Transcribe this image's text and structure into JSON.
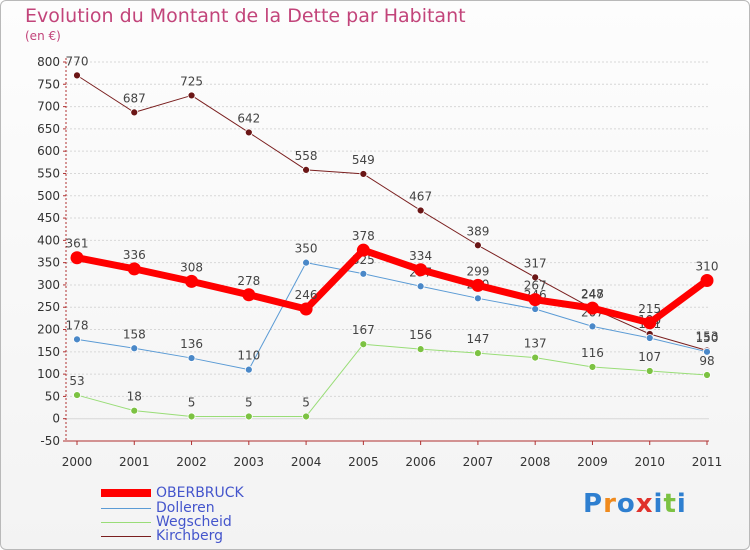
{
  "header": {
    "title": "Evolution du Montant de la Dette par Habitant",
    "unit": "(en €)"
  },
  "brand": {
    "text": "Proxiti",
    "letter_colors": [
      "#2e7fd0",
      "#f08a1c",
      "#2e7fd0",
      "#e0322c",
      "#2e7fd0",
      "#7cc242",
      "#2e7fd0"
    ]
  },
  "colors": {
    "title": "#c2447a",
    "legend_text": "#4455cc",
    "axis": "#b03030",
    "grid": "#d7d7d7"
  },
  "chart_data": {
    "type": "line",
    "title": "Evolution du Montant de la Dette par Habitant",
    "subtitle": "(en €)",
    "xlabel": "",
    "ylabel": "",
    "x": [
      "2000",
      "2001",
      "2002",
      "2003",
      "2004",
      "2005",
      "2006",
      "2007",
      "2008",
      "2009",
      "2010",
      "2011"
    ],
    "ylim": [
      -50,
      800
    ],
    "yticks": [
      -50,
      0,
      50,
      100,
      150,
      200,
      250,
      300,
      350,
      400,
      450,
      500,
      550,
      600,
      650,
      700,
      750,
      800
    ],
    "grid": "horizontal",
    "legend_position": "bottom-left",
    "series": [
      {
        "name": "Kirchberg",
        "color": "#7a1f1f",
        "point_color": "#6b1616",
        "line_width": 1,
        "values": [
          770,
          687,
          725,
          642,
          558,
          549,
          467,
          389,
          317,
          247,
          190,
          153
        ],
        "labels": [
          "770",
          "687",
          "725",
          "642",
          "558",
          "549",
          "467",
          "389",
          "317",
          "247",
          "190",
          "153"
        ]
      },
      {
        "name": "Dolleren",
        "color": "#5b9bd5",
        "point_color": "#4a88c8",
        "line_width": 1,
        "values": [
          178,
          158,
          136,
          110,
          350,
          325,
          297,
          270,
          246,
          207,
          181,
          150
        ],
        "labels": [
          "178",
          "158",
          "136",
          "110",
          "350",
          "325",
          "297",
          "270",
          "246",
          "207",
          "181",
          "150"
        ]
      },
      {
        "name": "Wegscheid",
        "color": "#99dd77",
        "point_color": "#7cc242",
        "line_width": 1,
        "values": [
          53,
          18,
          5,
          5,
          5,
          167,
          156,
          147,
          137,
          116,
          107,
          98
        ],
        "labels": [
          "53",
          "18",
          "5",
          "5",
          "5",
          "167",
          "156",
          "147",
          "137",
          "116",
          "107",
          "98"
        ]
      },
      {
        "name": "OBERBRUCK",
        "color": "#ff0000",
        "point_color": "#ff0000",
        "line_width": 7,
        "values": [
          361,
          336,
          308,
          278,
          246,
          378,
          334,
          299,
          267,
          248,
          215,
          310
        ],
        "labels": [
          "361",
          "336",
          "308",
          "278",
          "246",
          "378",
          "334",
          "299",
          "267",
          "248",
          "215",
          "310"
        ]
      }
    ]
  }
}
